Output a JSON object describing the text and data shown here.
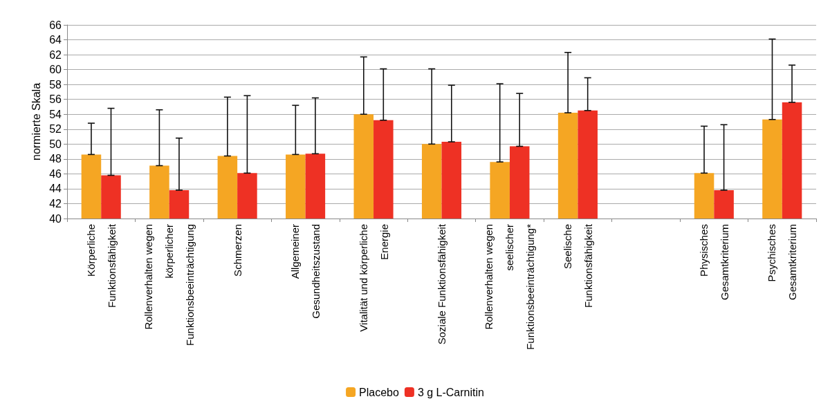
{
  "chart_data": {
    "type": "bar",
    "ylabel": "normierte Skala",
    "categories": [
      "Körperliche\nFunktionsfähigkeit",
      "Rollenverhalten wegen\nkörperlicher\nFunktionsbeeinträchtigung",
      "Schmerzen",
      "Allgemeiner\nGesundheitszustand",
      "Vitalität und körperliche\nEnergie",
      "Soziale Funktionsfähigkeit",
      "Rollenverhalten wegen\nseelischer\nFunktionsbeeinträchtigung*",
      "Seelische\nFunktionsfähigkeit",
      null,
      "Physisches\nGesamtkriterium",
      "Psychisches\nGesamtkriterium"
    ],
    "series": [
      {
        "name": "Placebo",
        "color": "#f5a623",
        "values": [
          48.6,
          47.1,
          48.4,
          48.6,
          54.0,
          50.0,
          47.6,
          54.2,
          null,
          46.1,
          53.3
        ],
        "errors": [
          [
            48.6,
            52.8
          ],
          [
            47.1,
            54.6
          ],
          [
            48.4,
            56.3
          ],
          [
            48.6,
            55.2
          ],
          [
            54.0,
            61.7
          ],
          [
            50.0,
            60.1
          ],
          [
            47.6,
            58.1
          ],
          [
            54.2,
            62.3
          ],
          null,
          [
            46.1,
            52.4
          ],
          [
            53.3,
            64.1
          ]
        ]
      },
      {
        "name": "3 g L-Carnitin",
        "color": "#ee3124",
        "values": [
          45.8,
          43.8,
          46.1,
          48.7,
          53.2,
          50.3,
          49.7,
          54.5,
          null,
          43.8,
          55.6
        ],
        "errors": [
          [
            45.8,
            54.8
          ],
          [
            43.8,
            50.8
          ],
          [
            46.1,
            56.5
          ],
          [
            48.7,
            56.2
          ],
          [
            53.2,
            60.1
          ],
          [
            50.3,
            57.9
          ],
          [
            49.7,
            56.8
          ],
          [
            54.5,
            58.9
          ],
          null,
          [
            43.8,
            52.6
          ],
          [
            55.6,
            60.6
          ]
        ]
      }
    ],
    "ylim": [
      40,
      66
    ],
    "yticks": [
      40,
      42,
      44,
      46,
      48,
      50,
      52,
      54,
      56,
      58,
      60,
      62,
      64,
      66
    ],
    "grid": "y",
    "legend": "bottom"
  }
}
